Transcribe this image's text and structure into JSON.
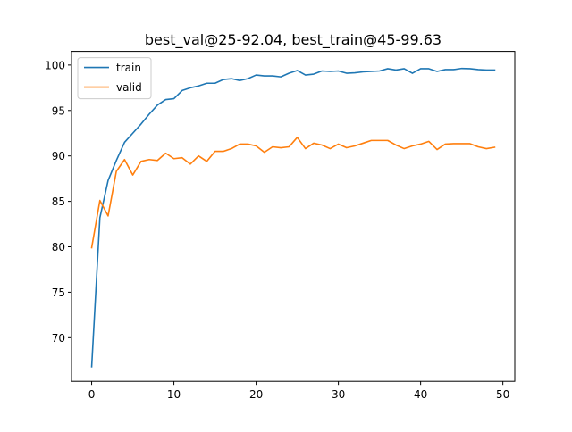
{
  "chart_data": {
    "type": "line",
    "title": "best_val@25-92.04, best_train@45-99.63",
    "xlabel": "",
    "ylabel": "",
    "xlim": [
      -2.45,
      51.45
    ],
    "ylim": [
      65.2,
      101.5
    ],
    "xticks": [
      0,
      10,
      20,
      30,
      40,
      50
    ],
    "yticks": [
      70,
      75,
      80,
      85,
      90,
      95,
      100
    ],
    "grid": false,
    "legend_position": "upper-left",
    "x": [
      0,
      1,
      2,
      3,
      4,
      5,
      6,
      7,
      8,
      9,
      10,
      11,
      12,
      13,
      14,
      15,
      16,
      17,
      18,
      19,
      20,
      21,
      22,
      23,
      24,
      25,
      26,
      27,
      28,
      29,
      30,
      31,
      32,
      33,
      34,
      35,
      36,
      37,
      38,
      39,
      40,
      41,
      42,
      43,
      44,
      45,
      46,
      47,
      48,
      49
    ],
    "series": [
      {
        "name": "train",
        "color": "#1f77b4",
        "values": [
          66.8,
          83.2,
          87.3,
          89.5,
          91.5,
          92.5,
          93.5,
          94.6,
          95.6,
          96.2,
          96.3,
          97.2,
          97.5,
          97.7,
          98.0,
          98.0,
          98.4,
          98.5,
          98.3,
          98.5,
          98.9,
          98.8,
          98.8,
          98.7,
          99.1,
          99.4,
          98.9,
          99.0,
          99.35,
          99.3,
          99.35,
          99.1,
          99.15,
          99.25,
          99.3,
          99.35,
          99.6,
          99.45,
          99.6,
          99.1,
          99.6,
          99.6,
          99.3,
          99.5,
          99.5,
          99.63,
          99.6,
          99.5,
          99.45,
          99.45
        ]
      },
      {
        "name": "valid",
        "color": "#ff7f0e",
        "values": [
          79.9,
          85.1,
          83.4,
          88.3,
          89.6,
          87.9,
          89.4,
          89.6,
          89.5,
          90.3,
          89.7,
          89.8,
          89.1,
          90.0,
          89.4,
          90.5,
          90.5,
          90.8,
          91.3,
          91.3,
          91.1,
          90.4,
          91.0,
          90.9,
          91.0,
          92.04,
          90.8,
          91.4,
          91.2,
          90.8,
          91.3,
          90.9,
          91.1,
          91.4,
          91.7,
          91.7,
          91.7,
          91.2,
          90.8,
          91.1,
          91.3,
          91.6,
          90.7,
          91.3,
          91.35,
          91.35,
          91.35,
          91.0,
          90.8,
          90.95
        ]
      }
    ]
  }
}
